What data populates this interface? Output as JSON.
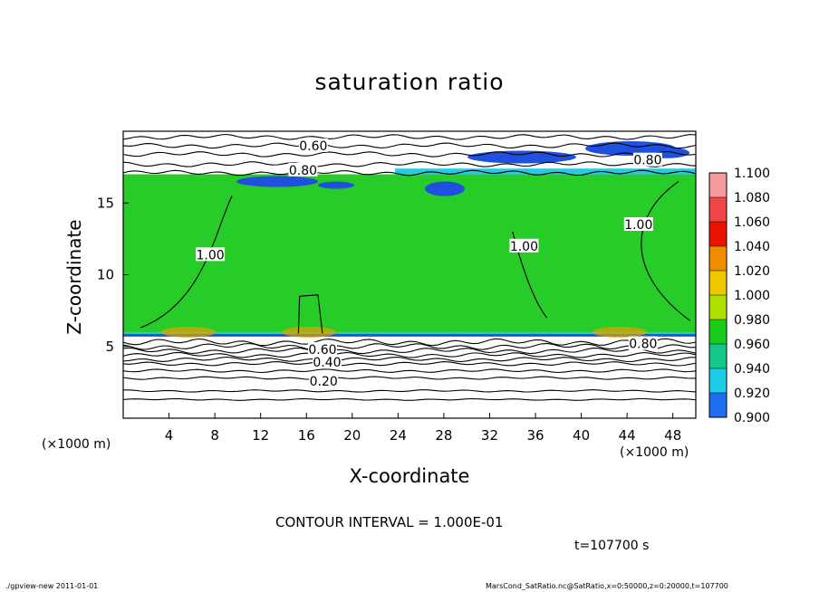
{
  "chart_data": {
    "type": "heatmap",
    "title": "saturation ratio",
    "xlabel": "X-coordinate",
    "ylabel": "Z-coordinate",
    "x_unit": "(×1000 m)",
    "z_unit": "(×1000 m)",
    "xlim": [
      0,
      50
    ],
    "ylim": [
      0,
      20
    ],
    "x_ticks": [
      4,
      8,
      12,
      16,
      20,
      24,
      28,
      32,
      36,
      40,
      44,
      48
    ],
    "y_ticks": [
      5,
      10,
      15
    ],
    "colorbar": {
      "levels": [
        "1.100",
        "1.080",
        "1.060",
        "1.040",
        "1.020",
        "1.000",
        "0.980",
        "0.960",
        "0.940",
        "0.920",
        "0.900"
      ],
      "colors": [
        "#f59a9a",
        "#f04646",
        "#e81400",
        "#f08c00",
        "#eec800",
        "#aee000",
        "#1ccc1c",
        "#14c88c",
        "#1ecce8",
        "#1e6ef0",
        "#1e28b4",
        "#6e0aa0"
      ]
    },
    "field_colors": {
      "saturated": "#28cc28",
      "unsaturated": "#ffffff",
      "interface": "#2050e0",
      "interface_edge": "#28c8e6",
      "supersat_spot": "#e6a000"
    },
    "layer_bounds": {
      "top": 17.0,
      "bottom": 5.75
    },
    "contour_labels": [
      {
        "text": "0.60",
        "x": 16.6,
        "z": 19.0
      },
      {
        "text": "0.80",
        "x": 15.7,
        "z": 17.3
      },
      {
        "text": "0.80",
        "x": 45.8,
        "z": 18.0
      },
      {
        "text": "1.00",
        "x": 7.6,
        "z": 11.4
      },
      {
        "text": "1.00",
        "x": 35.0,
        "z": 12.0
      },
      {
        "text": "1.00",
        "x": 45.0,
        "z": 13.5
      },
      {
        "text": "0.80",
        "x": 45.4,
        "z": 5.2
      },
      {
        "text": "0.60",
        "x": 17.4,
        "z": 4.8
      },
      {
        "text": "0.40",
        "x": 17.8,
        "z": 3.9
      },
      {
        "text": "0.20",
        "x": 17.5,
        "z": 2.6
      }
    ],
    "contour_interval_text": "CONTOUR INTERVAL = 1.000E-01",
    "time_text": "t=107700 s"
  },
  "footer": {
    "program": "./gpview-new  2011-01-01",
    "source": "MarsCond_SatRatio.nc@SatRatio,x=0:50000,z=0:20000,t=107700"
  }
}
